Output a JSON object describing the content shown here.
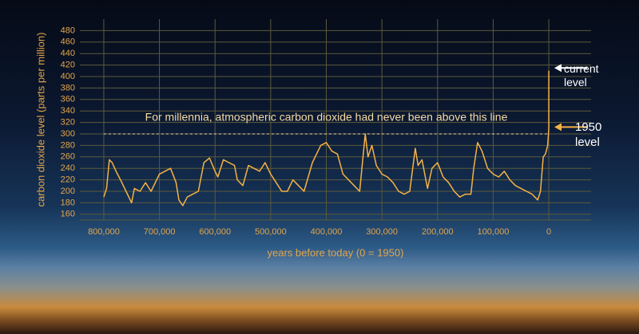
{
  "chart_data": {
    "type": "line",
    "y_label": "carbon dioxide level (parts per million)",
    "x_label": "years before today (0 = 1950)",
    "xlim": [
      843000,
      -76000
    ],
    "xticks": [
      {
        "value": 800000,
        "label": "800,000"
      },
      {
        "value": 700000,
        "label": "700,000"
      },
      {
        "value": 600000,
        "label": "600,000"
      },
      {
        "value": 500000,
        "label": "500,000"
      },
      {
        "value": 400000,
        "label": "400,000"
      },
      {
        "value": 300000,
        "label": "300,000"
      },
      {
        "value": 200000,
        "label": "200,000"
      },
      {
        "value": 100000,
        "label": "100,000"
      },
      0
    ],
    "ylim": [
      150,
      500
    ],
    "yticks": [
      160,
      180,
      200,
      220,
      240,
      260,
      280,
      300,
      320,
      340,
      360,
      380,
      400,
      420,
      440,
      460,
      480
    ],
    "grid": true,
    "x": [
      800000,
      795000,
      790000,
      785000,
      778000,
      770000,
      760000,
      750000,
      745000,
      735000,
      725000,
      715000,
      700000,
      690000,
      680000,
      670000,
      665000,
      658000,
      650000,
      640000,
      630000,
      620000,
      610000,
      600000,
      595000,
      585000,
      575000,
      565000,
      560000,
      550000,
      540000,
      530000,
      520000,
      510000,
      500000,
      490000,
      480000,
      470000,
      460000,
      450000,
      440000,
      425000,
      410000,
      400000,
      390000,
      380000,
      370000,
      360000,
      350000,
      340000,
      330000,
      325000,
      318000,
      310000,
      300000,
      290000,
      280000,
      270000,
      260000,
      250000,
      240000,
      235000,
      228000,
      218000,
      210000,
      200000,
      190000,
      180000,
      170000,
      160000,
      150000,
      140000,
      135000,
      128000,
      120000,
      110000,
      100000,
      90000,
      80000,
      70000,
      60000,
      50000,
      40000,
      30000,
      20000,
      15000,
      10000,
      6000,
      2000,
      0,
      0
    ],
    "series": [
      {
        "color": "#f5b244",
        "values": [
          190,
          205,
          255,
          250,
          235,
          220,
          200,
          180,
          205,
          200,
          215,
          200,
          230,
          235,
          240,
          215,
          185,
          175,
          190,
          195,
          200,
          250,
          258,
          235,
          225,
          255,
          250,
          245,
          220,
          210,
          245,
          240,
          235,
          250,
          230,
          215,
          200,
          200,
          220,
          210,
          200,
          250,
          280,
          285,
          270,
          265,
          230,
          220,
          210,
          200,
          300,
          260,
          280,
          245,
          230,
          225,
          215,
          200,
          195,
          200,
          275,
          245,
          255,
          205,
          240,
          250,
          225,
          215,
          200,
          190,
          195,
          195,
          240,
          285,
          270,
          240,
          230,
          225,
          235,
          220,
          210,
          205,
          200,
          195,
          185,
          200,
          260,
          265,
          280,
          310,
          410
        ]
      }
    ],
    "reference_line": {
      "value": 300,
      "label": "For millennia, atmospheric carbon dioxide had never been above this line",
      "color": "#f3d9a4"
    },
    "annotations": [
      {
        "text": "current level",
        "value": 415,
        "color": "#ffffff"
      },
      {
        "text": "1950 level",
        "value": 312,
        "color": "#f5b244"
      }
    ]
  }
}
